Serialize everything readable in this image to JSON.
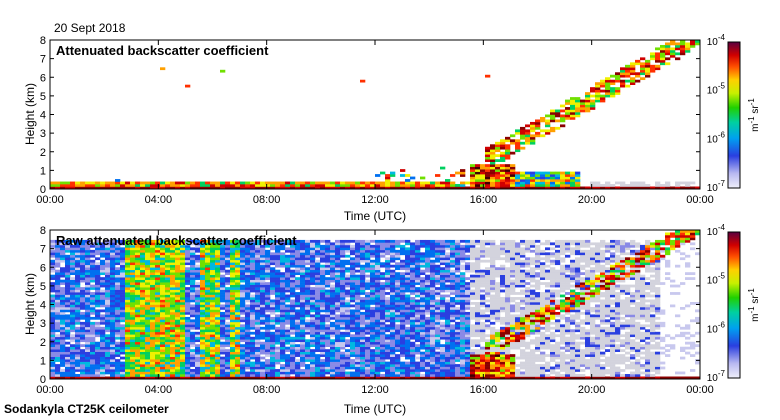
{
  "date_label": "20 Sept 2018",
  "footer_label": "Sodankyla CT25K ceilometer",
  "colors": {
    "colormap": [
      "#e8e8f2",
      "#c8c8ee",
      "#8a8ae6",
      "#2a3fe0",
      "#0070f0",
      "#00b8e0",
      "#00d060",
      "#70e000",
      "#f0f000",
      "#ffa000",
      "#ff3000",
      "#d00000",
      "#8a0000",
      "#400000"
    ],
    "clear_air": "#ffffff",
    "saturation_band": "#d3d3dd"
  },
  "chart_data": [
    {
      "type": "heatmap",
      "title": "Attenuated backscatter coefficient",
      "xlabel": "Time (UTC)",
      "ylabel": "Height (km)",
      "x_ticks": [
        "00:00",
        "04:00",
        "08:00",
        "12:00",
        "16:00",
        "20:00",
        "00:00"
      ],
      "y_ticks": [
        "0",
        "1",
        "2",
        "3",
        "4",
        "5",
        "6",
        "7",
        "8"
      ],
      "xlim_hours": [
        0,
        24
      ],
      "ylim_km": [
        0,
        8
      ],
      "log_color_scale": true,
      "colorbar": {
        "ticks": [
          "10",
          "10",
          "10",
          "10"
        ],
        "exponents": [
          "-7",
          "-6",
          "-5",
          "-4"
        ],
        "label_base_1": "m",
        "label_exp_1": "-1",
        "label_base_2": " sr",
        "label_exp_2": "-1",
        "range_exp": [
          -7,
          -4
        ]
      }
    },
    {
      "type": "heatmap",
      "title": "Raw attenuated backscatter coefficient",
      "xlabel": "Time (UTC)",
      "ylabel": "Height (km)",
      "x_ticks": [
        "00:00",
        "04:00",
        "08:00",
        "12:00",
        "16:00",
        "20:00",
        "00:00"
      ],
      "y_ticks": [
        "0",
        "1",
        "2",
        "3",
        "4",
        "5",
        "6",
        "7",
        "8"
      ],
      "xlim_hours": [
        0,
        24
      ],
      "ylim_km": [
        0,
        8
      ],
      "log_color_scale": true,
      "colorbar": {
        "ticks": [
          "10",
          "10",
          "10",
          "10"
        ],
        "exponents": [
          "-7",
          "-6",
          "-5",
          "-4"
        ],
        "label_base_1": "m",
        "label_exp_1": "-1",
        "label_base_2": " sr",
        "label_exp_2": "-1",
        "range_exp": [
          -7,
          -4
        ]
      }
    }
  ]
}
